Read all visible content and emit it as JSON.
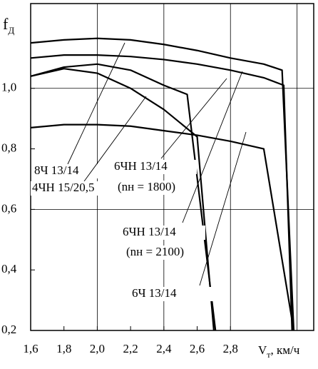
{
  "chart_data": {
    "type": "line",
    "ylabel_symbol": "f",
    "ylabel_subscript": "Д",
    "xlabel_symbol": "V",
    "xlabel_subscript": "т",
    "xlabel_unit": ", км/ч",
    "xlim": [
      1.6,
      3.3
    ],
    "ylim": [
      0.2,
      1.28
    ],
    "xticks": [
      {
        "value": 1.6,
        "label": "1,6"
      },
      {
        "value": 1.8,
        "label": "1,8"
      },
      {
        "value": 2.0,
        "label": "2,0"
      },
      {
        "value": 2.2,
        "label": "2,2"
      },
      {
        "value": 2.4,
        "label": "2,4"
      },
      {
        "value": 2.6,
        "label": "2,6"
      },
      {
        "value": 2.8,
        "label": "2,8"
      }
    ],
    "yticks": [
      {
        "value": 0.2,
        "label": "0,2"
      },
      {
        "value": 0.4,
        "label": "0,4"
      },
      {
        "value": 0.6,
        "label": "0,6"
      },
      {
        "value": 0.8,
        "label": "0,8"
      },
      {
        "value": 1.0,
        "label": "1,0"
      }
    ],
    "xgrid": [
      2.0,
      2.4,
      2.8,
      3.2
    ],
    "ygrid": [
      0.6,
      1.0
    ],
    "series": [
      {
        "name": "8Ч 13/14",
        "color": "#000000",
        "x": [
          1.6,
          1.8,
          2.0,
          2.2,
          2.4,
          2.6,
          2.8,
          3.0,
          3.11,
          3.18
        ],
        "values": [
          1.15,
          1.16,
          1.165,
          1.16,
          1.145,
          1.125,
          1.1,
          1.08,
          1.06,
          0.2
        ]
      },
      {
        "name": "4ЧН 15/20,5",
        "color": "#000000",
        "x": [
          1.6,
          1.8,
          2.0,
          2.2,
          2.4,
          2.54,
          2.71
        ],
        "values": [
          1.04,
          1.07,
          1.08,
          1.06,
          1.01,
          0.98,
          0.2
        ]
      },
      {
        "name": "6ЧН 13/14",
        "condition": "(nн = 1800)",
        "color": "#000000",
        "x": [
          1.6,
          1.8,
          2.0,
          2.2,
          2.4,
          2.6,
          2.7
        ],
        "values": [
          1.04,
          1.065,
          1.05,
          1.0,
          0.93,
          0.84,
          0.2
        ]
      },
      {
        "name": "6ЧН 13/14",
        "condition": "(nн = 2100)",
        "color": "#000000",
        "x": [
          1.6,
          1.8,
          2.0,
          2.2,
          2.4,
          2.6,
          2.8,
          3.0,
          3.12,
          3.17
        ],
        "values": [
          1.1,
          1.11,
          1.11,
          1.105,
          1.095,
          1.08,
          1.06,
          1.035,
          1.01,
          0.2
        ]
      },
      {
        "name": "6Ч 13/14",
        "color": "#000000",
        "x": [
          1.6,
          1.8,
          2.0,
          2.2,
          2.4,
          2.6,
          2.8,
          3.0,
          3.18
        ],
        "values": [
          0.87,
          0.88,
          0.88,
          0.875,
          0.86,
          0.845,
          0.825,
          0.8,
          0.2
        ]
      }
    ]
  }
}
